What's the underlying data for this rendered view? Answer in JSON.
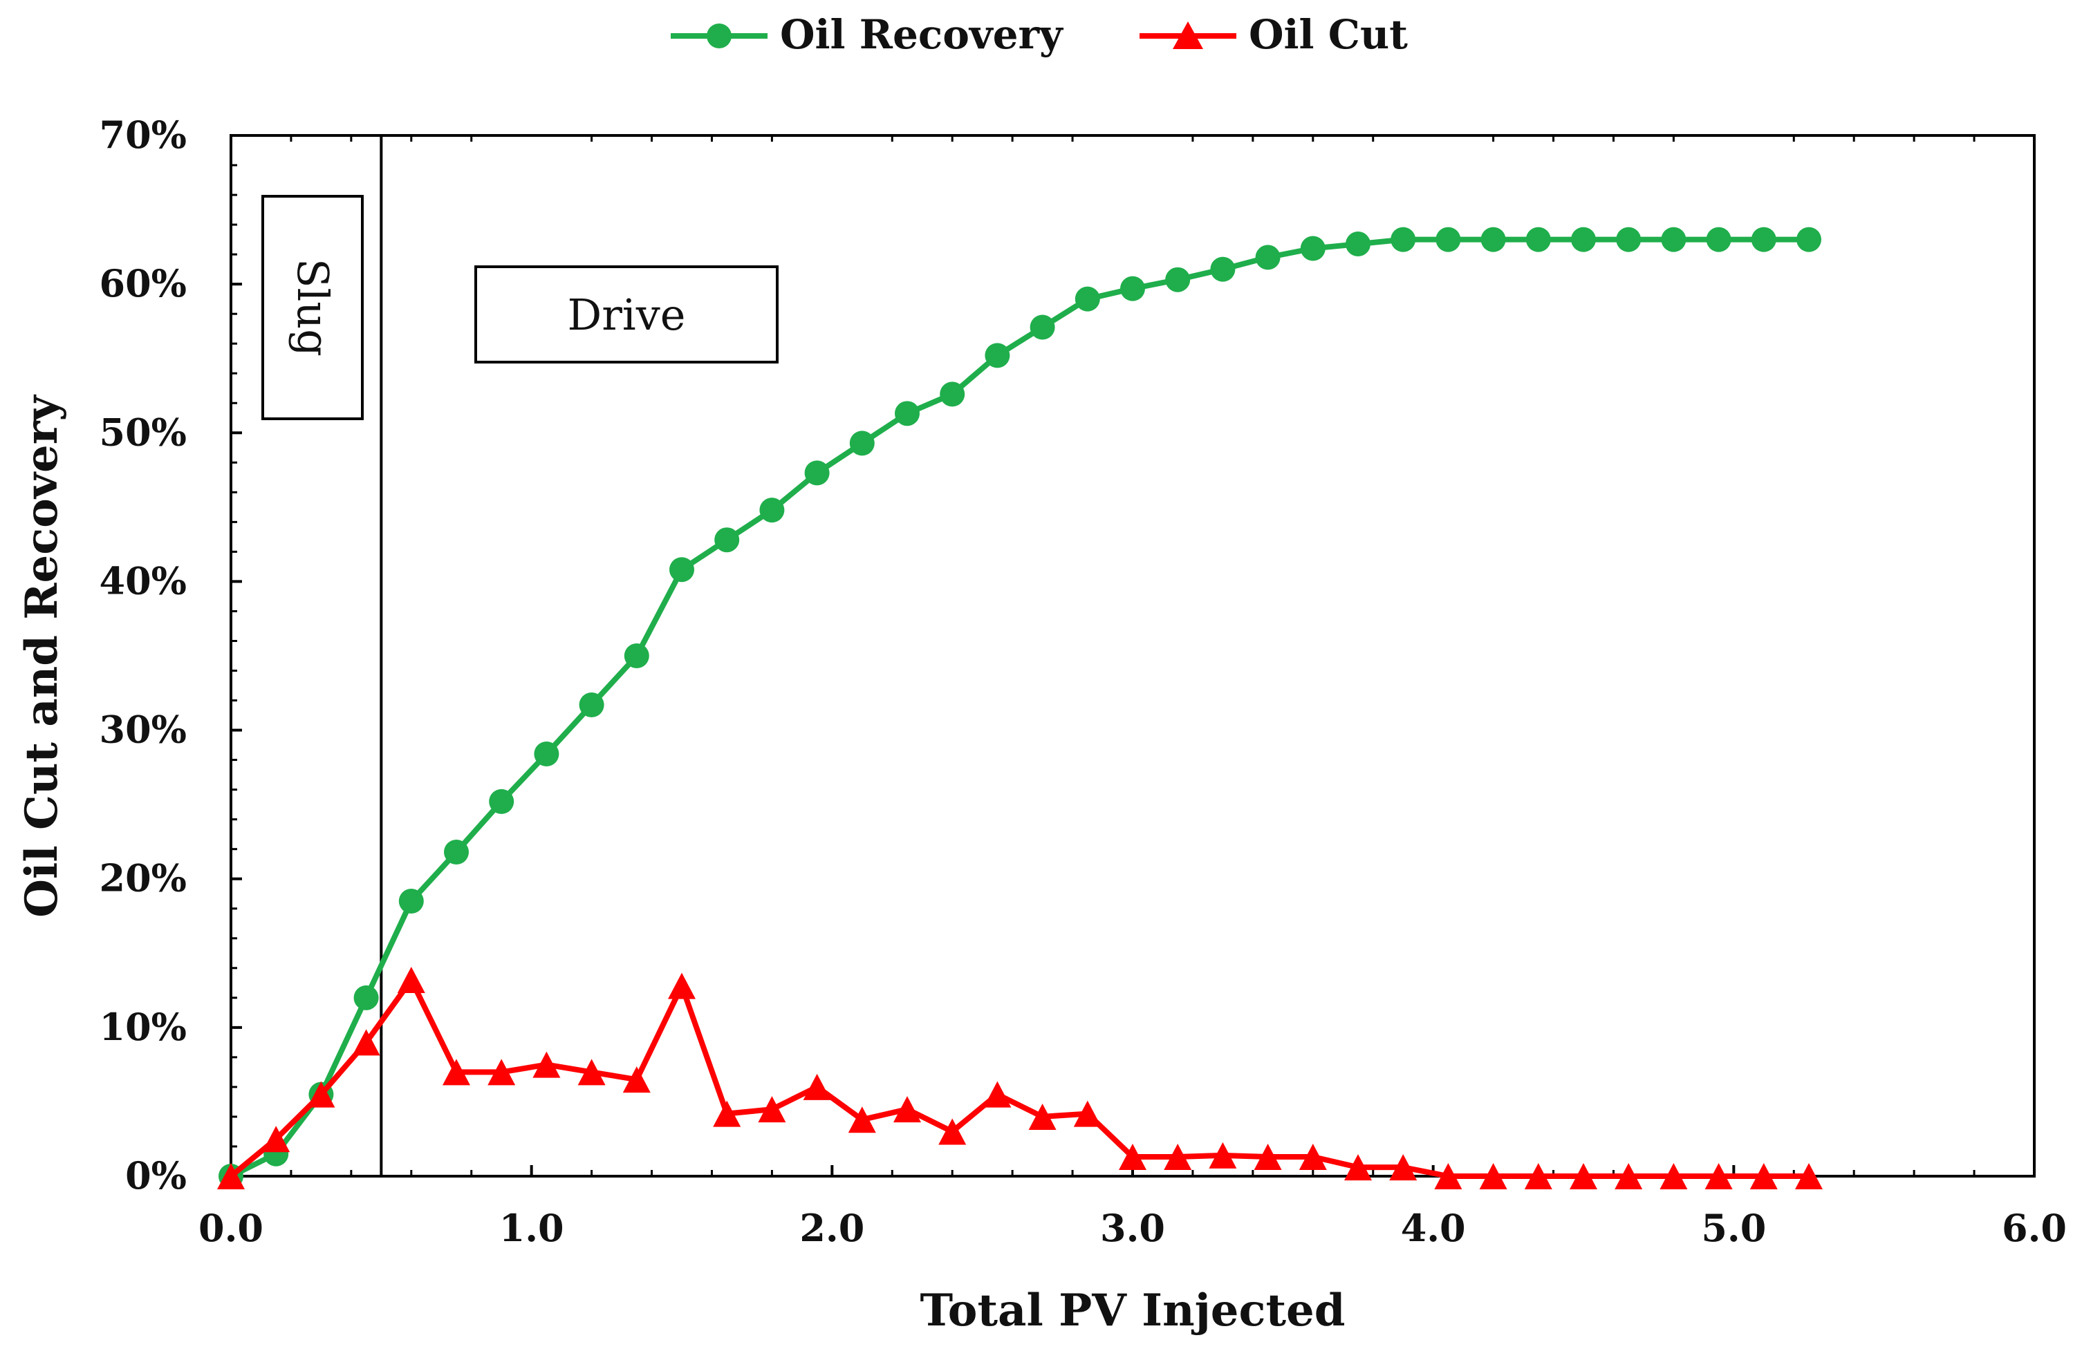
{
  "chart_data": {
    "type": "line",
    "title": "",
    "xlabel": "Total PV Injected",
    "ylabel": "Oil Cut and Recovery",
    "xlim": [
      0,
      6
    ],
    "ylim": [
      0,
      70
    ],
    "x_ticks": [
      "0.0",
      "1.0",
      "2.0",
      "3.0",
      "4.0",
      "5.0",
      "6.0"
    ],
    "x_tick_values": [
      0,
      1,
      2,
      3,
      4,
      5,
      6
    ],
    "y_ticks": [
      "0%",
      "10%",
      "20%",
      "30%",
      "40%",
      "50%",
      "60%",
      "70%"
    ],
    "y_tick_values": [
      0,
      10,
      20,
      30,
      40,
      50,
      60,
      70
    ],
    "grid": false,
    "legend_position": "top-center",
    "slug_boundary_x": 0.5,
    "annotations": [
      {
        "label": "Slug",
        "region": "slug"
      },
      {
        "label": "Drive",
        "region": "drive"
      }
    ],
    "series": [
      {
        "name": "Oil Recovery",
        "color": "#1fae4b",
        "marker": "circle",
        "x": [
          0,
          0.15,
          0.3,
          0.45,
          0.6,
          0.75,
          0.9,
          1.05,
          1.2,
          1.35,
          1.5,
          1.65,
          1.8,
          1.95,
          2.1,
          2.25,
          2.4,
          2.55,
          2.7,
          2.85,
          3.0,
          3.15,
          3.3,
          3.45,
          3.6,
          3.75,
          3.9,
          4.05,
          4.2,
          4.35,
          4.5,
          4.65,
          4.8,
          4.95,
          5.1,
          5.25
        ],
        "values": [
          0,
          1.5,
          5.5,
          12.0,
          18.5,
          21.8,
          25.2,
          28.4,
          31.7,
          35.0,
          40.8,
          42.8,
          44.8,
          47.3,
          49.3,
          51.3,
          52.6,
          55.2,
          57.1,
          59.0,
          59.7,
          60.3,
          61.0,
          61.8,
          62.4,
          62.7,
          63.0,
          63.0,
          63.0,
          63.0,
          63.0,
          63.0,
          63.0,
          63.0,
          63.0,
          63.0
        ]
      },
      {
        "name": "Oil Cut",
        "color": "#ff0000",
        "marker": "triangle",
        "x": [
          0,
          0.15,
          0.3,
          0.45,
          0.6,
          0.75,
          0.9,
          1.05,
          1.2,
          1.35,
          1.5,
          1.65,
          1.8,
          1.95,
          2.1,
          2.25,
          2.4,
          2.55,
          2.7,
          2.85,
          3.0,
          3.15,
          3.3,
          3.45,
          3.6,
          3.75,
          3.9,
          4.05,
          4.2,
          4.35,
          4.5,
          4.65,
          4.8,
          4.95,
          5.1,
          5.25
        ],
        "values": [
          0,
          2.5,
          5.5,
          9.0,
          13.2,
          7.0,
          7.0,
          7.5,
          7.0,
          6.5,
          12.8,
          4.2,
          4.5,
          6.0,
          3.8,
          4.5,
          3.0,
          5.5,
          4.0,
          4.2,
          1.3,
          1.3,
          1.4,
          1.3,
          1.3,
          0.6,
          0.6,
          0,
          0,
          0,
          0,
          0,
          0,
          0,
          0,
          0
        ]
      }
    ]
  }
}
